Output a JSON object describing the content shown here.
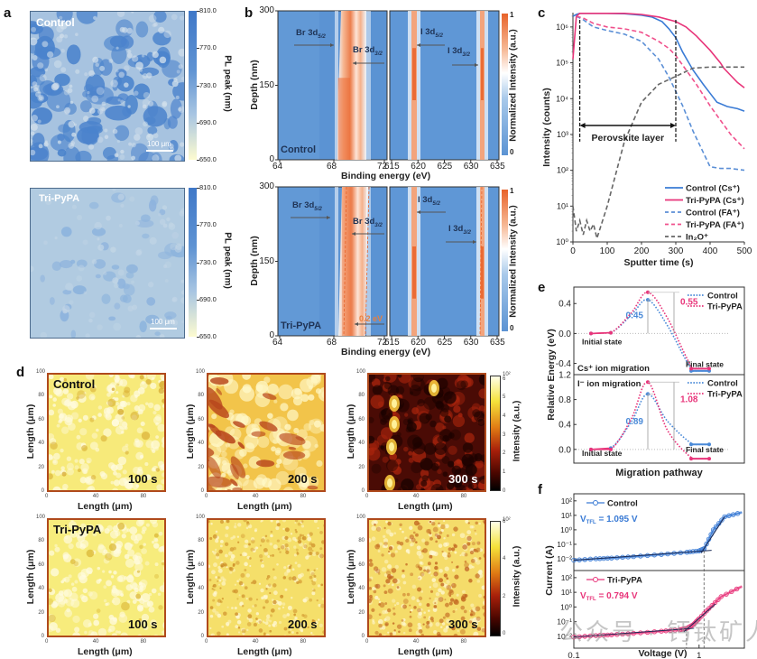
{
  "panels": {
    "a": {
      "label": "a",
      "maps": [
        {
          "sample": "Control",
          "scalebar": "100 μm"
        },
        {
          "sample": "Tri-PyPA",
          "scalebar": "100 μm"
        }
      ],
      "colorbar": {
        "title": "PL peak (nm)",
        "ticks": [
          "810.0",
          "770.0",
          "730.0",
          "690.0",
          "650.0"
        ],
        "colors": [
          "#fdfbd0",
          "#3f78c8"
        ]
      }
    },
    "b": {
      "label": "b",
      "ylabel": "Depth (nm)",
      "xlabel": "Binding energy (eV)",
      "yticks": [
        "300",
        "150",
        "0"
      ],
      "xticks_left": [
        "64",
        "68",
        "72"
      ],
      "xticks_right": [
        "615",
        "620",
        "625",
        "630",
        "635"
      ],
      "colorbar": {
        "title": "Normalized Intensity (a.u.)",
        "ticks": [
          "1",
          "0"
        ],
        "colors": [
          "#5b93d3",
          "#ffffff",
          "#e8632a"
        ]
      },
      "rows": [
        {
          "sample": "Control",
          "annotations": [
            "Br 3d5/2",
            "Br 3d3/2",
            "I 3d5/2",
            "I 3d3/2"
          ],
          "shift": ""
        },
        {
          "sample": "Tri-PyPA",
          "annotations": [
            "Br 3d5/2",
            "Br 3d3/2",
            "I 3d5/2",
            "I 3d3/2"
          ],
          "shift": "0.2 eV"
        }
      ],
      "peak_labels": {
        "br52": "Br 3d",
        "br52_sub": "5/2",
        "br32": "Br 3d",
        "br32_sub": "3/2",
        "i52": "I 3d",
        "i52_sub": "5/2",
        "i32": "I 3d",
        "i32_sub": "3/2"
      }
    },
    "c": {
      "label": "c",
      "annotation": "Perovskite layer"
    },
    "d": {
      "label": "d",
      "xlabel": "Length (μm)",
      "ylabel": "Length (μm)",
      "ticks": [
        "0",
        "40",
        "80"
      ],
      "yticks": [
        "100",
        "80",
        "60",
        "40",
        "20",
        "0"
      ],
      "rows": [
        {
          "sample": "Control",
          "times": [
            "100 s",
            "200 s",
            "300 s"
          ]
        },
        {
          "sample": "Tri-PyPA",
          "times": [
            "100 s",
            "200 s",
            "300 s"
          ]
        }
      ],
      "colorbar": {
        "title": "Intensity (a.u.)",
        "exp": "10²",
        "ticks": [
          "6",
          "5",
          "4",
          "3",
          "2",
          "1",
          "0"
        ],
        "ticks_lower": [
          "6",
          "4",
          "2",
          "0"
        ]
      }
    },
    "e": {
      "label": "e",
      "xlabel": "Migration pathway",
      "ylabel": "Relative Energy (eV)"
    },
    "f": {
      "label": "f",
      "xlabel": "Voltage (V)",
      "ylabel": "Current (A)"
    }
  },
  "watermark": "公众号 · 钙钛矿人",
  "chart_data": [
    {
      "id": "c",
      "type": "line",
      "title": "",
      "xlabel": "Sputter time (s)",
      "ylabel": "Intensity (counts)",
      "xlim": [
        0,
        500
      ],
      "ylim_log10": [
        0,
        6.4
      ],
      "yscale": "log",
      "xticks": [
        0,
        100,
        200,
        300,
        400,
        500
      ],
      "yticks": [
        "10⁰",
        "10¹",
        "10²",
        "10³",
        "10⁴",
        "10⁵",
        "10⁶"
      ],
      "legend_position": "bottom-right",
      "markers": {
        "dashed_vlines": [
          20,
          300
        ],
        "layer_arrow": [
          20,
          300
        ],
        "layer_label": "Perovskite layer"
      },
      "series": [
        {
          "name": "Control (Cs⁺)",
          "color": "#3a7bd5",
          "dash": false,
          "x": [
            0,
            10,
            20,
            50,
            100,
            150,
            200,
            230,
            260,
            280,
            300,
            320,
            350,
            380,
            400,
            420,
            450,
            480,
            500
          ],
          "log10y": [
            6.3,
            6.35,
            6.38,
            6.38,
            6.38,
            6.37,
            6.33,
            6.28,
            6.15,
            5.95,
            5.7,
            5.3,
            4.8,
            4.4,
            4.15,
            3.9,
            3.78,
            3.72,
            3.65
          ]
        },
        {
          "name": "Tri-PyPA (Cs⁺)",
          "color": "#e8357a",
          "dash": false,
          "x": [
            0,
            10,
            20,
            50,
            100,
            150,
            200,
            250,
            300,
            330,
            360,
            400,
            430,
            440,
            460,
            480,
            500
          ],
          "log10y": [
            5.1,
            6.3,
            6.38,
            6.38,
            6.38,
            6.38,
            6.35,
            6.28,
            6.15,
            6.0,
            5.75,
            5.35,
            5.0,
            4.85,
            4.65,
            4.45,
            4.3
          ]
        },
        {
          "name": "Control (FA⁺)",
          "color": "#5b8fd6",
          "dash": true,
          "x": [
            10,
            30,
            60,
            100,
            150,
            200,
            250,
            280,
            300,
            320,
            350,
            380,
            400,
            430,
            460,
            500
          ],
          "log10y": [
            6.3,
            6.2,
            6.0,
            5.9,
            5.8,
            5.6,
            5.1,
            4.6,
            4.2,
            3.8,
            3.1,
            2.5,
            2.1,
            2.05,
            2.05,
            2.0
          ]
        },
        {
          "name": "Tri-PyPA (FA⁺)",
          "color": "#f0508c",
          "dash": true,
          "x": [
            10,
            30,
            60,
            100,
            150,
            200,
            250,
            280,
            300,
            330,
            360,
            400,
            430,
            460,
            500
          ],
          "log10y": [
            6.3,
            6.25,
            6.1,
            6.0,
            5.95,
            5.85,
            5.6,
            5.4,
            5.2,
            4.8,
            4.4,
            3.8,
            3.4,
            3.0,
            2.6
          ]
        },
        {
          "name": "In₂O⁺",
          "color": "#666666",
          "dash": true,
          "x": [
            0,
            10,
            20,
            30,
            40,
            50,
            60,
            70,
            100,
            150,
            200,
            250,
            300,
            350,
            400,
            500
          ],
          "log10y": [
            1.0,
            0.3,
            0.6,
            0.2,
            0.6,
            0.3,
            0.5,
            0.1,
            1.0,
            2.8,
            3.9,
            4.4,
            4.62,
            4.85,
            4.88,
            4.88
          ]
        }
      ]
    },
    {
      "id": "e",
      "type": "line",
      "title": "",
      "xlabel": "Migration pathway",
      "ylabel": "Relative Energy (eV)",
      "legend_position": "top-right",
      "subplots": [
        {
          "name": "Cs⁺ ion migration",
          "ylim": [
            -0.6,
            0.6
          ],
          "yticks": [
            "0.4",
            "0.0",
            "-0.4"
          ],
          "labels": {
            "initial": "Initial state",
            "final": "Final state"
          },
          "series": [
            {
              "name": "Control",
              "color": "#4a8ad8",
              "x": [
                0,
                1,
                2,
                3,
                4,
                5,
                6
              ],
              "y": [
                0.0,
                0.01,
                0.25,
                0.45,
                0.1,
                -0.5,
                -0.5
              ],
              "barrier": "0.45"
            },
            {
              "name": "Tri-PyPA",
              "color": "#e8357a",
              "x": [
                0,
                1,
                2,
                3,
                4,
                5,
                6
              ],
              "y": [
                0.0,
                0.01,
                0.28,
                0.55,
                0.2,
                -0.47,
                -0.47
              ],
              "barrier": "0.55"
            }
          ]
        },
        {
          "name": "I⁻ ion migration",
          "ylim": [
            -0.2,
            1.2
          ],
          "yticks": [
            "1.2",
            "0.8",
            "0.4",
            "0.0"
          ],
          "labels": {
            "initial": "Initial state",
            "final": "Final state"
          },
          "series": [
            {
              "name": "Control",
              "color": "#4a8ad8",
              "x": [
                0,
                1,
                2,
                3,
                4,
                5,
                6
              ],
              "y": [
                0.0,
                0.02,
                0.45,
                0.89,
                0.45,
                0.08,
                0.08
              ],
              "barrier": "0.89"
            },
            {
              "name": "Tri-PyPA",
              "color": "#e8357a",
              "x": [
                0,
                1,
                2,
                3,
                4,
                5,
                6
              ],
              "y": [
                0.0,
                0.0,
                0.5,
                1.08,
                0.3,
                -0.15,
                -0.15
              ],
              "barrier": "1.08"
            }
          ]
        }
      ]
    },
    {
      "id": "f",
      "type": "line",
      "title": "",
      "xlabel": "Voltage (V)",
      "ylabel": "Current (A)",
      "xscale": "log",
      "xticks": [
        "0.1",
        "1"
      ],
      "legend_position": "top-left",
      "subplots": [
        {
          "name": "Control",
          "color": "#3a7bd5",
          "vtfl": "1.095 V",
          "vtfl_value": 1.095,
          "yticks": [
            "10²",
            "10¹",
            "10⁰",
            "10⁻¹",
            "10⁻²"
          ],
          "x": [
            0.1,
            0.15,
            0.2,
            0.3,
            0.5,
            0.8,
            1.0,
            1.1,
            1.3,
            1.6,
            2.2
          ],
          "log10y": [
            -2.1,
            -2.0,
            -1.95,
            -1.85,
            -1.7,
            -1.55,
            -1.45,
            -1.3,
            0.0,
            0.9,
            1.2
          ]
        },
        {
          "name": "Tri-PyPA",
          "color": "#e8357a",
          "vtfl": "0.794 V",
          "vtfl_value": 0.794,
          "yticks": [
            "10²",
            "10¹",
            "10⁰",
            "10⁻¹",
            "10⁻²"
          ],
          "x": [
            0.1,
            0.15,
            0.2,
            0.3,
            0.5,
            0.7,
            0.8,
            0.9,
            1.0,
            1.2,
            1.5,
            2.2
          ],
          "log10y": [
            -2.05,
            -1.95,
            -1.9,
            -1.8,
            -1.65,
            -1.55,
            -1.45,
            -1.2,
            -0.8,
            -0.1,
            0.7,
            1.4
          ]
        }
      ]
    }
  ]
}
